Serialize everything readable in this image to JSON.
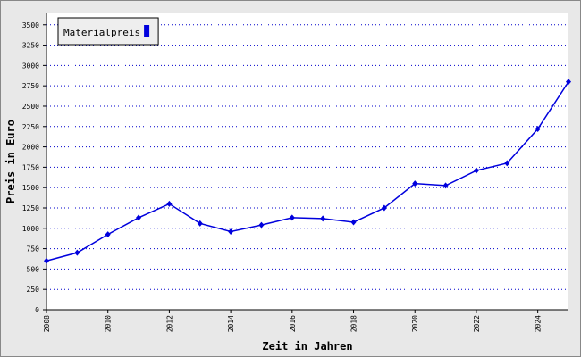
{
  "chart_data": {
    "type": "line",
    "x_label": "Zeit in Jahren",
    "y_label": "Preis in Euro",
    "x": [
      2008,
      2009,
      2010,
      2011,
      2012,
      2013,
      2014,
      2015,
      2016,
      2017,
      2018,
      2019,
      2020,
      2021,
      2022,
      2023,
      2024,
      2025
    ],
    "series": [
      {
        "name": "Materialpreis",
        "color": "#0000dd",
        "values": [
          600,
          700,
          925,
          1130,
          1300,
          1060,
          960,
          1040,
          1130,
          1120,
          1075,
          1250,
          1550,
          1525,
          1710,
          1800,
          2220,
          2800
        ]
      }
    ],
    "xlim": [
      2008,
      2025
    ],
    "xticks": [
      2008,
      2010,
      2012,
      2014,
      2016,
      2018,
      2020,
      2022,
      2024
    ],
    "ylim": [
      0,
      3640
    ],
    "yticks": [
      0,
      250,
      500,
      750,
      1000,
      1250,
      1500,
      1750,
      2000,
      2250,
      2500,
      2750,
      3000,
      3250,
      3500
    ],
    "grid": true,
    "legend": "top-left"
  }
}
